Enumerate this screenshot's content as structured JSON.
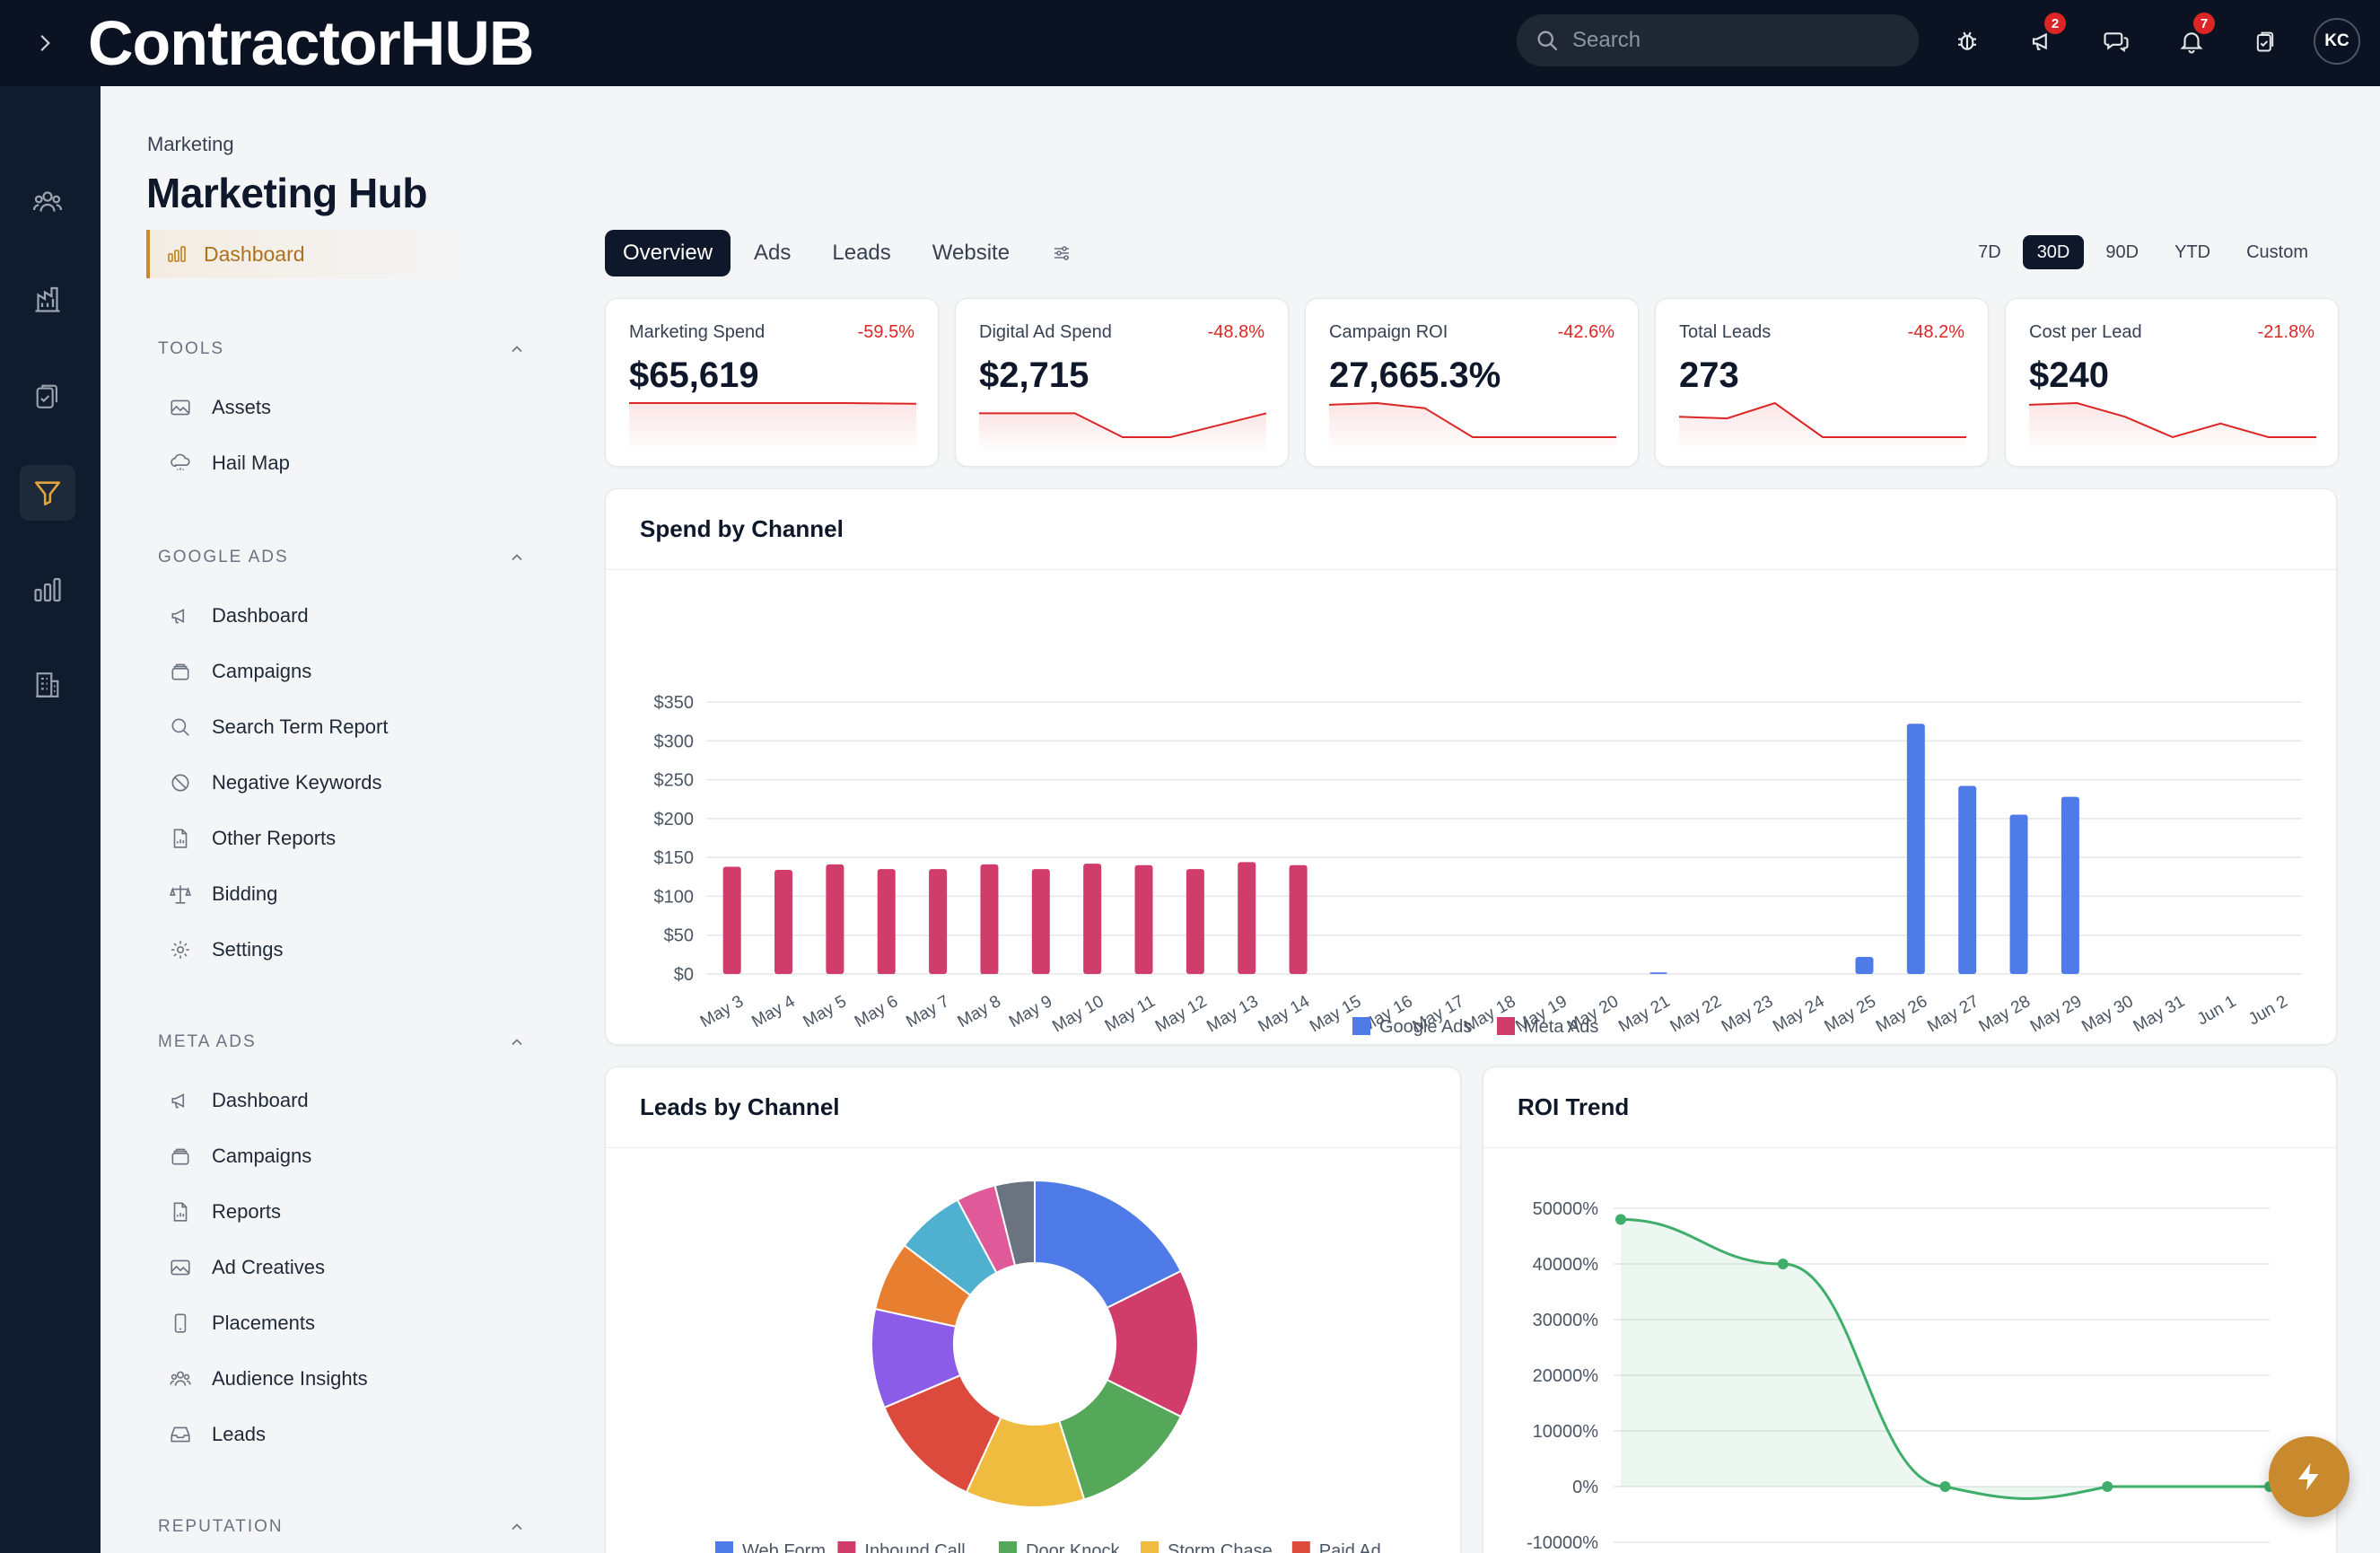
{
  "header": {
    "logo_text": "ContractorHUB",
    "search_placeholder": "Search",
    "announcements_badge": "2",
    "notifications_badge": "7",
    "avatar_initials": "KC"
  },
  "rail": {
    "icons": [
      "team-icon",
      "analytics-building-icon",
      "clipboard-icon",
      "funnel-icon",
      "bar-chart-icon",
      "building-icon"
    ],
    "active": "funnel-icon",
    "accent": "#c98a2e"
  },
  "subnav": {
    "breadcrumb": "Marketing",
    "title": "Marketing Hub",
    "dashboard_label": "Dashboard",
    "sections": {
      "tools": {
        "title": "TOOLS",
        "items": [
          "Assets",
          "Hail Map"
        ]
      },
      "google_ads": {
        "title": "GOOGLE ADS",
        "items": [
          "Dashboard",
          "Campaigns",
          "Search Term Report",
          "Negative Keywords",
          "Other Reports",
          "Bidding",
          "Settings"
        ]
      },
      "meta_ads": {
        "title": "META ADS",
        "items": [
          "Dashboard",
          "Campaigns",
          "Reports",
          "Ad Creatives",
          "Placements",
          "Audience Insights",
          "Leads"
        ]
      },
      "reputation": {
        "title": "REPUTATION"
      }
    }
  },
  "tabs": {
    "items": [
      "Overview",
      "Ads",
      "Leads",
      "Website"
    ],
    "active": "Overview"
  },
  "ranges": {
    "items": [
      "7D",
      "30D",
      "90D",
      "YTD",
      "Custom"
    ],
    "active": "30D"
  },
  "kpis": [
    {
      "label": "Marketing Spend",
      "value": "$65,619",
      "change": "-59.5%",
      "trend": [
        1,
        1,
        1,
        1,
        0.98
      ]
    },
    {
      "label": "Digital Ad Spend",
      "value": "$2,715",
      "change": "-48.8%",
      "trend": [
        0.7,
        0.7,
        0.7,
        0,
        0,
        0.35,
        0.7
      ]
    },
    {
      "label": "Campaign ROI",
      "value": "27,665.3%",
      "change": "-42.6%",
      "trend": [
        0.95,
        1,
        0.85,
        0,
        0,
        0,
        0
      ]
    },
    {
      "label": "Total Leads",
      "value": "273",
      "change": "-48.2%",
      "trend": [
        0.6,
        0.55,
        1,
        0,
        0,
        0,
        0
      ]
    },
    {
      "label": "Cost per Lead",
      "value": "$240",
      "change": "-21.8%",
      "trend": [
        0.95,
        1,
        0.6,
        0,
        0.4,
        0,
        0
      ]
    }
  ],
  "spend_card": {
    "title": "Spend by Channel"
  },
  "leads_card": {
    "title": "Leads by Channel"
  },
  "roi_card": {
    "title": "ROI Trend"
  },
  "chart_data": [
    {
      "type": "bar",
      "title": "Spend by Channel",
      "categories": [
        "May 3",
        "May 4",
        "May 5",
        "May 6",
        "May 7",
        "May 8",
        "May 9",
        "May 10",
        "May 11",
        "May 12",
        "May 13",
        "May 14",
        "May 15",
        "May 16",
        "May 17",
        "May 18",
        "May 19",
        "May 20",
        "May 21",
        "May 22",
        "May 23",
        "May 24",
        "May 25",
        "May 26",
        "May 27",
        "May 28",
        "May 29",
        "May 30",
        "May 31",
        "Jun 1",
        "Jun 2"
      ],
      "y_ticks": [
        "$0",
        "$50",
        "$100",
        "$150",
        "$200",
        "$250",
        "$300",
        "$350"
      ],
      "ylim": [
        0,
        350
      ],
      "series": [
        {
          "name": "Google Ads",
          "color": "#4f7be8",
          "values": [
            0,
            0,
            0,
            1,
            0,
            1,
            0,
            0,
            0,
            0,
            0,
            0,
            0,
            0,
            0,
            0,
            0,
            0,
            2,
            0,
            0,
            0,
            22,
            322,
            242,
            205,
            228,
            0,
            0,
            0,
            0
          ]
        },
        {
          "name": "Meta Ads",
          "color": "#d03d6b",
          "values": [
            138,
            134,
            141,
            135,
            135,
            141,
            135,
            142,
            140,
            135,
            144,
            140,
            0,
            0,
            0,
            0,
            0,
            0,
            0,
            0,
            0,
            0,
            0,
            0,
            0,
            0,
            0,
            0,
            0,
            0,
            0
          ]
        }
      ],
      "legend": "bottom-center"
    },
    {
      "type": "pie",
      "title": "Leads by Channel",
      "donut": true,
      "slices": [
        {
          "label": "Web Form",
          "value": 18,
          "color": "#4f7be8"
        },
        {
          "label": "Inbound Call",
          "value": 15,
          "color": "#d03d6b"
        },
        {
          "label": "Door Knock",
          "value": 13,
          "color": "#55a85a"
        },
        {
          "label": "Storm Chase",
          "value": 12,
          "color": "#f0bc3f"
        },
        {
          "label": "Paid Ad",
          "value": 12,
          "color": "#dc4a3d"
        },
        {
          "label": "",
          "value": 10,
          "color": "#8b5ce8"
        },
        {
          "label": "",
          "value": 7,
          "color": "#e87f30"
        },
        {
          "label": "",
          "value": 7,
          "color": "#4fb0d0"
        },
        {
          "label": "",
          "value": 4,
          "color": "#e05a9a"
        },
        {
          "label": "",
          "value": 4,
          "color": "#6b7280"
        }
      ],
      "legend_visible": [
        "Web Form",
        "Inbound Call",
        "Door Knock",
        "Storm Chase",
        "Paid Ad"
      ]
    },
    {
      "type": "line",
      "title": "ROI Trend",
      "y_ticks": [
        "50000%",
        "40000%",
        "30000%",
        "20000%",
        "10000%",
        "0%",
        "-10000%"
      ],
      "ylim": [
        -10000,
        50000
      ],
      "x": [
        0,
        1,
        2,
        3,
        4
      ],
      "series": [
        {
          "values": [
            48000,
            40000,
            0,
            0,
            0
          ],
          "color": "#3fae6a"
        }
      ],
      "fill": true
    }
  ]
}
